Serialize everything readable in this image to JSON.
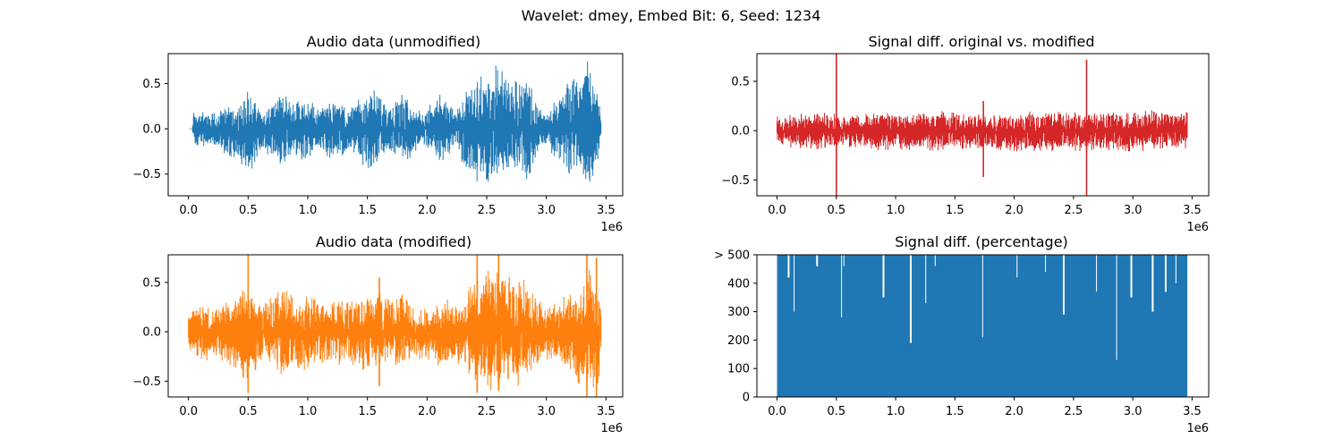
{
  "figure": {
    "suptitle": "Wavelet: dmey, Embed Bit: 6, Seed: 1234"
  },
  "chart_data": [
    {
      "id": "audio_unmodified",
      "type": "line",
      "title": "Audio data (unmodified)",
      "color": "#1f77b4",
      "xlim": [
        -170000,
        3640000
      ],
      "ylim": [
        -0.74,
        0.83
      ],
      "xticks": [
        0,
        500000,
        1000000,
        1500000,
        2000000,
        2500000,
        3000000,
        3500000
      ],
      "xtick_labels": [
        "0.0",
        "0.5",
        "1.0",
        "1.5",
        "2.0",
        "2.5",
        "3.0",
        "3.5"
      ],
      "x_offset_label": "1e6",
      "yticks": [
        -0.5,
        0.0,
        0.5
      ],
      "ytick_labels": [
        "−0.5",
        "0.0",
        "0.5"
      ],
      "x_range": [
        0,
        3460000
      ],
      "envelope": {
        "x": [
          0,
          30000,
          40000,
          100000,
          150000,
          200000,
          260000,
          330000,
          400000,
          450000,
          500000,
          550000,
          620000,
          700000,
          760000,
          800000,
          870000,
          950000,
          1000000,
          1060000,
          1120000,
          1200000,
          1280000,
          1350000,
          1420000,
          1500000,
          1560000,
          1600000,
          1680000,
          1750000,
          1800000,
          1870000,
          1930000,
          2000000,
          2060000,
          2120000,
          2200000,
          2260000,
          2300000,
          2380000,
          2420000,
          2500000,
          2580000,
          2650000,
          2700000,
          2780000,
          2860000,
          2920000,
          2960000,
          3000000,
          3060000,
          3120000,
          3180000,
          3240000,
          3300000,
          3340000,
          3380000,
          3420000,
          3460000
        ],
        "upper": [
          0.005,
          0.005,
          0.2,
          0.25,
          0.18,
          0.2,
          0.18,
          0.33,
          0.22,
          0.3,
          0.42,
          0.38,
          0.2,
          0.3,
          0.4,
          0.42,
          0.26,
          0.33,
          0.4,
          0.22,
          0.22,
          0.4,
          0.3,
          0.24,
          0.32,
          0.42,
          0.44,
          0.36,
          0.25,
          0.35,
          0.38,
          0.26,
          0.2,
          0.2,
          0.36,
          0.38,
          0.28,
          0.22,
          0.43,
          0.5,
          0.55,
          0.62,
          0.72,
          0.6,
          0.52,
          0.53,
          0.62,
          0.35,
          0.2,
          0.18,
          0.28,
          0.42,
          0.55,
          0.6,
          0.7,
          0.77,
          0.75,
          0.52,
          0.1
        ],
        "lower": [
          -0.005,
          -0.005,
          -0.18,
          -0.22,
          -0.2,
          -0.2,
          -0.25,
          -0.35,
          -0.3,
          -0.4,
          -0.55,
          -0.4,
          -0.25,
          -0.35,
          -0.43,
          -0.42,
          -0.3,
          -0.34,
          -0.42,
          -0.27,
          -0.25,
          -0.4,
          -0.3,
          -0.26,
          -0.36,
          -0.43,
          -0.45,
          -0.38,
          -0.28,
          -0.36,
          -0.42,
          -0.3,
          -0.2,
          -0.2,
          -0.3,
          -0.36,
          -0.26,
          -0.2,
          -0.44,
          -0.55,
          -0.6,
          -0.58,
          -0.62,
          -0.58,
          -0.5,
          -0.52,
          -0.6,
          -0.38,
          -0.2,
          -0.18,
          -0.3,
          -0.42,
          -0.52,
          -0.58,
          -0.62,
          -0.66,
          -0.64,
          -0.48,
          -0.08
        ]
      }
    },
    {
      "id": "signal_diff",
      "type": "line",
      "title": "Signal diff. original vs. modified",
      "color": "#d62728",
      "xlim": [
        -170000,
        3640000
      ],
      "ylim": [
        -0.66,
        0.78
      ],
      "xticks": [
        0,
        500000,
        1000000,
        1500000,
        2000000,
        2500000,
        3000000,
        3500000
      ],
      "xtick_labels": [
        "0.0",
        "0.5",
        "1.0",
        "1.5",
        "2.0",
        "2.5",
        "3.0",
        "3.5"
      ],
      "x_offset_label": "1e6",
      "yticks": [
        -0.5,
        0.0,
        0.5
      ],
      "ytick_labels": [
        "−0.5",
        "0.0",
        "0.5"
      ],
      "x_range": [
        0,
        3460000
      ],
      "envelope": {
        "x": [
          0,
          200000,
          400000,
          600000,
          800000,
          1000000,
          1200000,
          1400000,
          1600000,
          1800000,
          2000000,
          2200000,
          2400000,
          2600000,
          2800000,
          3000000,
          3200000,
          3460000
        ],
        "upper": [
          0.15,
          0.17,
          0.18,
          0.16,
          0.17,
          0.18,
          0.17,
          0.2,
          0.16,
          0.17,
          0.18,
          0.2,
          0.19,
          0.18,
          0.2,
          0.19,
          0.21,
          0.2
        ],
        "lower": [
          -0.16,
          -0.18,
          -0.19,
          -0.18,
          -0.2,
          -0.19,
          -0.2,
          -0.2,
          -0.18,
          -0.2,
          -0.21,
          -0.22,
          -0.2,
          -0.21,
          -0.2,
          -0.21,
          -0.2,
          -0.2
        ]
      },
      "spikes": [
        {
          "x": 500000,
          "lo": -0.66,
          "hi": 0.78
        },
        {
          "x": 1740000,
          "lo": -0.47,
          "hi": 0.3
        },
        {
          "x": 2610000,
          "lo": -0.66,
          "hi": 0.72
        }
      ]
    },
    {
      "id": "audio_modified",
      "type": "line",
      "title": "Audio data (modified)",
      "color": "#ff7f0e",
      "xlim": [
        -170000,
        3640000
      ],
      "ylim": [
        -0.66,
        0.78
      ],
      "xticks": [
        0,
        500000,
        1000000,
        1500000,
        2000000,
        2500000,
        3000000,
        3500000
      ],
      "xtick_labels": [
        "0.0",
        "0.5",
        "1.0",
        "1.5",
        "2.0",
        "2.5",
        "3.0",
        "3.5"
      ],
      "x_offset_label": "1e6",
      "yticks": [
        -0.5,
        0.0,
        0.5
      ],
      "ytick_labels": [
        "−0.5",
        "0.0",
        "0.5"
      ],
      "x_range": [
        0,
        3460000
      ],
      "envelope": {
        "x": [
          0,
          30000,
          100000,
          200000,
          300000,
          400000,
          480000,
          550000,
          620000,
          700000,
          800000,
          900000,
          1000000,
          1100000,
          1200000,
          1300000,
          1400000,
          1500000,
          1600000,
          1700000,
          1800000,
          1900000,
          2000000,
          2100000,
          2200000,
          2300000,
          2400000,
          2500000,
          2600000,
          2700000,
          2800000,
          2900000,
          3000000,
          3100000,
          3200000,
          3300000,
          3380000,
          3440000,
          3460000
        ],
        "upper": [
          0.16,
          0.2,
          0.28,
          0.25,
          0.3,
          0.35,
          0.45,
          0.38,
          0.3,
          0.35,
          0.45,
          0.32,
          0.4,
          0.28,
          0.35,
          0.3,
          0.35,
          0.42,
          0.4,
          0.3,
          0.38,
          0.25,
          0.24,
          0.35,
          0.32,
          0.3,
          0.55,
          0.62,
          0.6,
          0.55,
          0.55,
          0.4,
          0.25,
          0.3,
          0.42,
          0.55,
          0.65,
          0.5,
          0.15
        ],
        "lower": [
          -0.15,
          -0.22,
          -0.3,
          -0.28,
          -0.35,
          -0.42,
          -0.5,
          -0.4,
          -0.32,
          -0.38,
          -0.45,
          -0.35,
          -0.42,
          -0.3,
          -0.36,
          -0.32,
          -0.38,
          -0.44,
          -0.42,
          -0.32,
          -0.4,
          -0.28,
          -0.27,
          -0.36,
          -0.34,
          -0.32,
          -0.55,
          -0.6,
          -0.58,
          -0.52,
          -0.56,
          -0.42,
          -0.28,
          -0.32,
          -0.45,
          -0.55,
          -0.62,
          -0.5,
          -0.12
        ]
      },
      "spikes": [
        {
          "x": 500000,
          "lo": -0.62,
          "hi": 0.78
        },
        {
          "x": 1600000,
          "lo": -0.55,
          "hi": 0.55
        },
        {
          "x": 2420000,
          "lo": -0.62,
          "hi": 0.78
        },
        {
          "x": 2600000,
          "lo": -0.6,
          "hi": 0.78
        },
        {
          "x": 3340000,
          "lo": -0.66,
          "hi": 0.78
        },
        {
          "x": 3420000,
          "lo": -0.66,
          "hi": 0.75
        }
      ]
    },
    {
      "id": "signal_diff_percentage",
      "type": "area",
      "title": "Signal diff. (percentage)",
      "color": "#1f77b4",
      "xlim": [
        -170000,
        3640000
      ],
      "ylim": [
        0,
        500
      ],
      "xticks": [
        0,
        500000,
        1000000,
        1500000,
        2000000,
        2500000,
        3000000,
        3500000
      ],
      "xtick_labels": [
        "0.0",
        "0.5",
        "1.0",
        "1.5",
        "2.0",
        "2.5",
        "3.0",
        "3.5"
      ],
      "x_offset_label": "1e6",
      "yticks": [
        0,
        100,
        200,
        300,
        400,
        500
      ],
      "ytick_labels": [
        "0",
        "100",
        "200",
        "300",
        "400",
        "> 500"
      ],
      "x_range": [
        0,
        3460000
      ],
      "fill_to": 500,
      "dips": [
        {
          "x": 90000,
          "y": 420
        },
        {
          "x": 140000,
          "y": 300
        },
        {
          "x": 330000,
          "y": 460
        },
        {
          "x": 540000,
          "y": 280
        },
        {
          "x": 560000,
          "y": 460
        },
        {
          "x": 890000,
          "y": 350
        },
        {
          "x": 1120000,
          "y": 190
        },
        {
          "x": 1250000,
          "y": 330
        },
        {
          "x": 1330000,
          "y": 460
        },
        {
          "x": 1730000,
          "y": 210
        },
        {
          "x": 2020000,
          "y": 420
        },
        {
          "x": 2260000,
          "y": 440
        },
        {
          "x": 2410000,
          "y": 290
        },
        {
          "x": 2690000,
          "y": 370
        },
        {
          "x": 2860000,
          "y": 130
        },
        {
          "x": 2980000,
          "y": 350
        },
        {
          "x": 3160000,
          "y": 300
        },
        {
          "x": 3270000,
          "y": 370
        },
        {
          "x": 3360000,
          "y": 400
        }
      ]
    }
  ]
}
